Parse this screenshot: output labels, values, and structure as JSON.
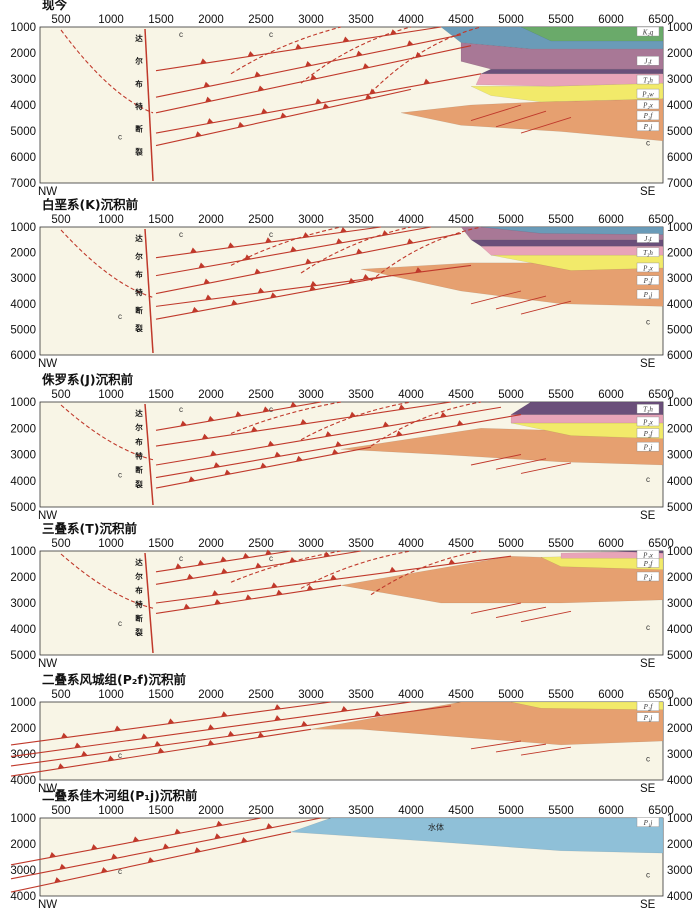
{
  "x_ticks": [
    "500",
    "1000",
    "1500",
    "2000",
    "2500",
    "3000",
    "3500",
    "4000",
    "4500",
    "5000",
    "5500",
    "6000",
    "6500"
  ],
  "left_label": "NW",
  "right_label": "SE",
  "fault_chars": [
    "达",
    "尔",
    "布",
    "特",
    "断",
    "裂"
  ],
  "basement_label": "c",
  "water_label": "水体",
  "units": {
    "K2q": "K₂q",
    "J3t": "J₃t",
    "T3h": "T₃h",
    "P3w": "P₃w",
    "P2x": "P₂x",
    "P2f": "P₂f",
    "P1j": "P₁j"
  },
  "colors": {
    "cream": "#f8f5e6",
    "fault": "#c0392b",
    "K": "#6aaa6a",
    "J": "#6a9bb8",
    "T": "#a87896",
    "P3w": "#6a4f7a",
    "P2x": "#e8a4b8",
    "P2f": "#f2ea6a",
    "P1j": "#e6a070",
    "water": "#8fc0d8"
  },
  "panels": [
    {
      "id": "p1",
      "title": "现今",
      "y_ticks": [
        "1000",
        "2000",
        "3000",
        "4000",
        "5000",
        "6000",
        "7000"
      ]
    },
    {
      "id": "p2",
      "title": "白垩系(K)沉积前",
      "y_ticks": [
        "1000",
        "2000",
        "3000",
        "4000",
        "5000",
        "6000"
      ]
    },
    {
      "id": "p3",
      "title": "侏罗系(J)沉积前",
      "y_ticks": [
        "1000",
        "2000",
        "3000",
        "4000",
        "5000"
      ]
    },
    {
      "id": "p4",
      "title": "三叠系(T)沉积前",
      "y_ticks": [
        "1000",
        "2000",
        "3000",
        "4000",
        "5000"
      ]
    },
    {
      "id": "p5",
      "title": "二叠系风城组(P₂f)沉积前",
      "y_ticks": [
        "1000",
        "2000",
        "3000",
        "4000"
      ]
    },
    {
      "id": "p6",
      "title": "二叠系佳木河组(P₁j)沉积前",
      "y_ticks": [
        "1000",
        "2000",
        "3000",
        "4000"
      ]
    }
  ]
}
